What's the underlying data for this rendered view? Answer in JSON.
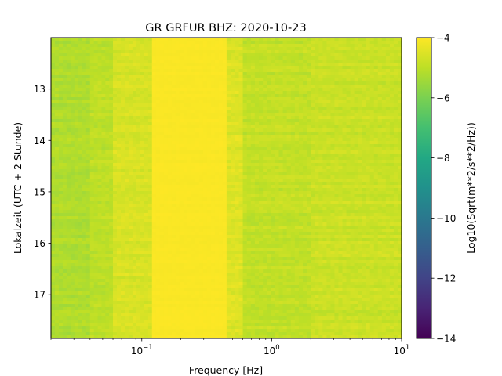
{
  "chart_data": {
    "type": "heatmap",
    "title": "GR GRFUR  BHZ: 2020-10-23",
    "xlabel": "Frequency [Hz]",
    "ylabel": "Lokalzeit (UTC + 2 Stunde)",
    "xscale": "log",
    "xlim": [
      0.02,
      10
    ],
    "xticks": [
      {
        "value": 0.1,
        "base": "10",
        "exp": "−1"
      },
      {
        "value": 1,
        "base": "10",
        "exp": "0"
      },
      {
        "value": 10,
        "base": "10",
        "exp": "1"
      }
    ],
    "ylim": [
      12.0,
      17.85
    ],
    "y_inverted": true,
    "yticks": [
      13,
      14,
      15,
      16,
      17
    ],
    "colorbar": {
      "label": "Log10(Sqrt(m**2/s**2/Hz))",
      "min": -14,
      "max": -4,
      "ticks": [
        -4,
        -6,
        -8,
        -10,
        -12,
        -14
      ],
      "tick_labels": [
        "−4",
        "−6",
        "−8",
        "−10",
        "−12",
        "−14"
      ],
      "colormap": "viridis"
    },
    "bands": [
      {
        "f_min": 0.02,
        "f_max": 0.04,
        "level": -5.2
      },
      {
        "f_min": 0.04,
        "f_max": 0.06,
        "level": -5.0
      },
      {
        "f_min": 0.06,
        "f_max": 0.12,
        "level": -4.6
      },
      {
        "f_min": 0.12,
        "f_max": 0.45,
        "level": -4.05
      },
      {
        "f_min": 0.45,
        "f_max": 0.6,
        "level": -4.5
      },
      {
        "f_min": 0.6,
        "f_max": 2.0,
        "level": -4.9
      },
      {
        "f_min": 2.0,
        "f_max": 10,
        "level": -4.8
      }
    ]
  }
}
